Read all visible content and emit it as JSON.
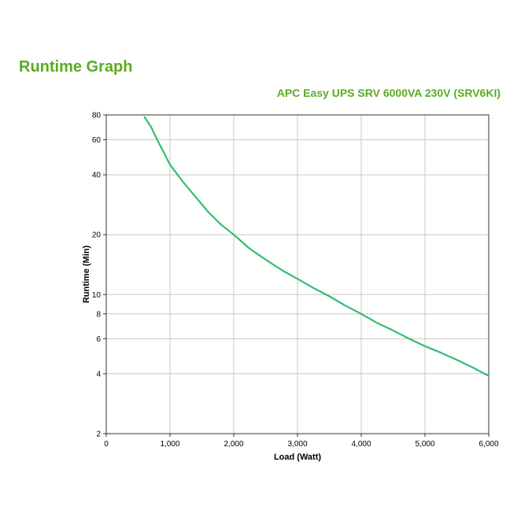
{
  "page": {
    "title": "Runtime Graph",
    "subtitle": "APC Easy UPS SRV 6000VA 230V (SRV6KI)"
  },
  "colors": {
    "title": "#5aab22",
    "line": "#2fbf71",
    "grid": "#c8c8c8"
  },
  "chart_data": {
    "type": "line",
    "title": "",
    "xlabel": "Load (Watt)",
    "ylabel": "Runtime (Min)",
    "xlim": [
      0,
      6000
    ],
    "ylim": [
      2,
      80
    ],
    "yscale": "log",
    "grid": true,
    "x_ticks": [
      0,
      1000,
      2000,
      3000,
      4000,
      5000,
      6000
    ],
    "x_tick_labels": [
      "0",
      "1,000",
      "2,000",
      "3,000",
      "4,000",
      "5,000",
      "6,000"
    ],
    "y_ticks": [
      2,
      4,
      6,
      8,
      10,
      20,
      40,
      60,
      80
    ],
    "y_tick_labels": [
      "2",
      "4",
      "6",
      "8",
      "10",
      "20",
      "40",
      "60",
      "80"
    ],
    "series": [
      {
        "name": "",
        "x": [
          600,
          700,
          800,
          900,
          1000,
          1200,
          1400,
          1600,
          1800,
          2000,
          2250,
          2500,
          2750,
          3000,
          3250,
          3500,
          3750,
          4000,
          4250,
          4500,
          4750,
          5000,
          5250,
          5500,
          5750,
          6000
        ],
        "y": [
          78,
          70,
          60,
          52,
          45,
          37,
          31,
          26,
          22.5,
          20,
          17,
          15,
          13.3,
          12,
          10.8,
          9.8,
          8.8,
          8,
          7.2,
          6.6,
          6,
          5.5,
          5.1,
          4.7,
          4.3,
          3.9
        ]
      }
    ]
  }
}
